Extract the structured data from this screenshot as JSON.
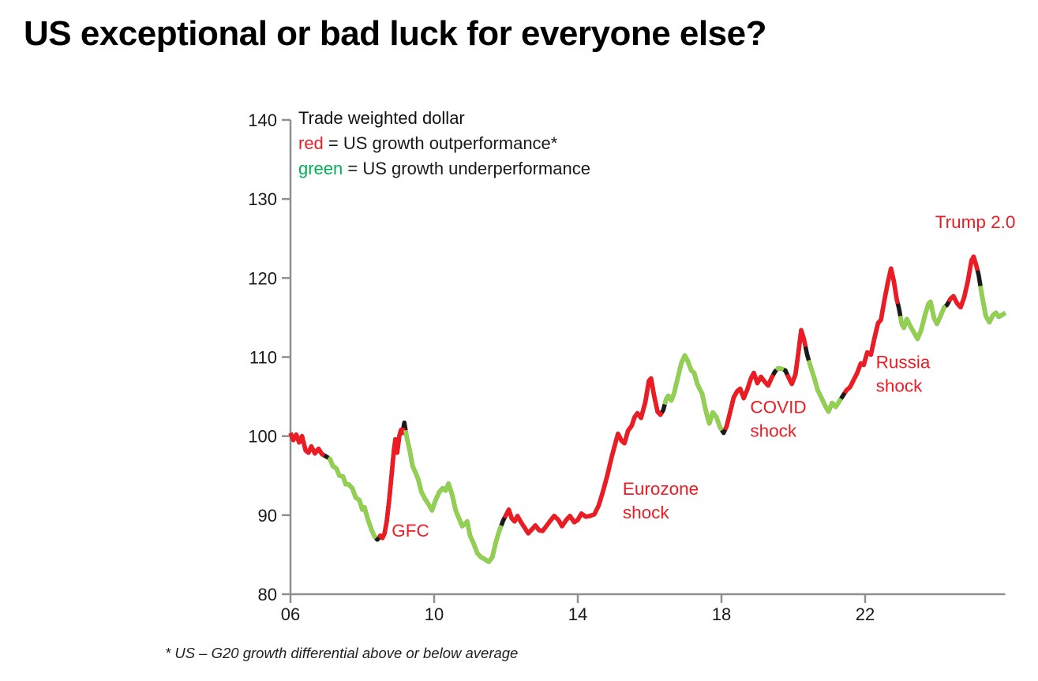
{
  "title": "US exceptional or bad luck for everyone else?",
  "footnote": "* US – G20 growth differential above or below average",
  "chart_data": {
    "type": "line",
    "title": "Trade weighted dollar",
    "xlabel": "",
    "ylabel": "",
    "xlim": [
      2006,
      2026
    ],
    "ylim": [
      80,
      140
    ],
    "grid": false,
    "legend_position": "top-left-inside",
    "axis_color": "#8f8f8f",
    "tick_label_color": "#1a1a1a",
    "joint_color": "#1a1a1a",
    "legend": {
      "heading": "Trade weighted dollar",
      "entries": [
        {
          "term": "red",
          "term_color": "#ed1c24",
          "definition": "= US growth outperformance*"
        },
        {
          "term": "green",
          "term_color": "#00b052",
          "definition": "= US growth underperformance"
        }
      ]
    },
    "y_ticks": [
      {
        "value": 80,
        "label": "80"
      },
      {
        "value": 90,
        "label": "90"
      },
      {
        "value": 100,
        "label": "100"
      },
      {
        "value": 110,
        "label": "110"
      },
      {
        "value": 120,
        "label": "120"
      },
      {
        "value": 130,
        "label": "130"
      },
      {
        "value": 140,
        "label": "140"
      }
    ],
    "x_ticks": [
      {
        "value": 2006,
        "label": "06"
      },
      {
        "value": 2010,
        "label": "10"
      },
      {
        "value": 2014,
        "label": "14"
      },
      {
        "value": 2018,
        "label": "18"
      },
      {
        "value": 2022,
        "label": "22"
      }
    ],
    "segments": [
      {
        "regime": "US growth outperformance",
        "color": "#ed1c24",
        "points": [
          [
            2006.0,
            100.4
          ],
          [
            2006.08,
            99.5
          ],
          [
            2006.16,
            100.2
          ],
          [
            2006.24,
            99.2
          ],
          [
            2006.32,
            100.0
          ],
          [
            2006.42,
            98.2
          ],
          [
            2006.5,
            97.9
          ],
          [
            2006.58,
            98.7
          ],
          [
            2006.68,
            97.8
          ],
          [
            2006.78,
            98.4
          ],
          [
            2006.88,
            97.7
          ],
          [
            2007.0,
            97.4
          ]
        ]
      },
      {
        "regime": "US growth underperformance",
        "color": "#92d050",
        "points": [
          [
            2007.0,
            97.4
          ],
          [
            2007.1,
            97.1
          ],
          [
            2007.18,
            96.2
          ],
          [
            2007.28,
            95.9
          ],
          [
            2007.36,
            95.0
          ],
          [
            2007.46,
            94.9
          ],
          [
            2007.54,
            93.9
          ],
          [
            2007.62,
            93.9
          ],
          [
            2007.72,
            93.4
          ],
          [
            2007.82,
            92.2
          ],
          [
            2007.92,
            91.9
          ],
          [
            2008.0,
            90.7
          ],
          [
            2008.06,
            91.0
          ],
          [
            2008.16,
            89.4
          ],
          [
            2008.26,
            88.1
          ],
          [
            2008.34,
            87.3
          ],
          [
            2008.42,
            86.9
          ]
        ]
      },
      {
        "regime": "US growth outperformance",
        "color": "#ed1c24",
        "points": [
          [
            2008.42,
            86.9
          ],
          [
            2008.5,
            87.4
          ],
          [
            2008.56,
            87.1
          ],
          [
            2008.62,
            87.7
          ],
          [
            2008.68,
            89.2
          ],
          [
            2008.75,
            92.0
          ],
          [
            2008.82,
            95.3
          ],
          [
            2008.88,
            98.2
          ],
          [
            2008.92,
            99.6
          ],
          [
            2008.97,
            97.9
          ],
          [
            2009.03,
            100.0
          ],
          [
            2009.08,
            100.8
          ],
          [
            2009.12,
            100.4
          ],
          [
            2009.17,
            101.7
          ]
        ]
      },
      {
        "regime": "US growth underperformance",
        "color": "#92d050",
        "points": [
          [
            2009.17,
            101.7
          ],
          [
            2009.24,
            99.8
          ],
          [
            2009.32,
            98.2
          ],
          [
            2009.4,
            96.2
          ],
          [
            2009.48,
            95.4
          ],
          [
            2009.56,
            94.5
          ],
          [
            2009.64,
            93.0
          ],
          [
            2009.74,
            92.1
          ],
          [
            2009.84,
            91.4
          ],
          [
            2009.94,
            90.6
          ],
          [
            2010.04,
            91.9
          ],
          [
            2010.14,
            92.9
          ],
          [
            2010.24,
            93.4
          ],
          [
            2010.32,
            93.1
          ],
          [
            2010.4,
            94.0
          ],
          [
            2010.5,
            92.6
          ],
          [
            2010.6,
            90.6
          ],
          [
            2010.7,
            89.5
          ],
          [
            2010.78,
            88.6
          ],
          [
            2010.86,
            88.9
          ],
          [
            2010.92,
            89.2
          ],
          [
            2011.0,
            87.4
          ],
          [
            2011.1,
            86.4
          ],
          [
            2011.2,
            85.2
          ],
          [
            2011.3,
            84.7
          ],
          [
            2011.42,
            84.4
          ],
          [
            2011.52,
            84.1
          ],
          [
            2011.62,
            84.7
          ],
          [
            2011.72,
            86.6
          ],
          [
            2011.82,
            88.1
          ],
          [
            2011.92,
            89.3
          ]
        ]
      },
      {
        "regime": "US growth outperformance",
        "color": "#ed1c24",
        "points": [
          [
            2011.92,
            89.3
          ],
          [
            2012.0,
            90.0
          ],
          [
            2012.08,
            90.7
          ],
          [
            2012.16,
            89.6
          ],
          [
            2012.24,
            89.2
          ],
          [
            2012.32,
            89.9
          ],
          [
            2012.42,
            89.1
          ],
          [
            2012.52,
            88.4
          ],
          [
            2012.62,
            87.7
          ],
          [
            2012.72,
            88.2
          ],
          [
            2012.82,
            88.7
          ],
          [
            2012.92,
            88.1
          ],
          [
            2013.02,
            88.0
          ],
          [
            2013.12,
            88.6
          ],
          [
            2013.22,
            89.2
          ],
          [
            2013.34,
            89.9
          ],
          [
            2013.46,
            89.4
          ],
          [
            2013.56,
            88.6
          ],
          [
            2013.68,
            89.4
          ],
          [
            2013.78,
            89.9
          ],
          [
            2013.9,
            89.1
          ],
          [
            2014.0,
            89.4
          ],
          [
            2014.1,
            90.2
          ],
          [
            2014.22,
            89.8
          ],
          [
            2014.34,
            89.9
          ],
          [
            2014.46,
            90.1
          ],
          [
            2014.58,
            91.2
          ],
          [
            2014.7,
            93.0
          ],
          [
            2014.82,
            95.0
          ],
          [
            2014.94,
            97.3
          ],
          [
            2015.04,
            99.0
          ],
          [
            2015.12,
            100.3
          ],
          [
            2015.22,
            99.4
          ],
          [
            2015.3,
            99.1
          ],
          [
            2015.4,
            100.7
          ],
          [
            2015.5,
            101.3
          ],
          [
            2015.58,
            102.4
          ],
          [
            2015.66,
            102.9
          ],
          [
            2015.76,
            102.3
          ],
          [
            2015.88,
            104.3
          ],
          [
            2015.98,
            107.0
          ],
          [
            2016.04,
            107.3
          ],
          [
            2016.12,
            105.2
          ],
          [
            2016.22,
            103.1
          ],
          [
            2016.3,
            102.7
          ],
          [
            2016.38,
            103.3
          ]
        ]
      },
      {
        "regime": "US growth underperformance",
        "color": "#92d050",
        "points": [
          [
            2016.38,
            103.3
          ],
          [
            2016.46,
            104.7
          ],
          [
            2016.52,
            105.1
          ],
          [
            2016.6,
            104.5
          ],
          [
            2016.68,
            105.4
          ],
          [
            2016.78,
            107.3
          ],
          [
            2016.88,
            109.2
          ],
          [
            2016.98,
            110.2
          ],
          [
            2017.06,
            109.5
          ],
          [
            2017.16,
            108.3
          ],
          [
            2017.24,
            108.0
          ],
          [
            2017.32,
            106.7
          ],
          [
            2017.4,
            105.9
          ],
          [
            2017.46,
            105.4
          ],
          [
            2017.56,
            103.3
          ],
          [
            2017.66,
            101.6
          ],
          [
            2017.76,
            103.0
          ],
          [
            2017.86,
            102.4
          ],
          [
            2017.96,
            101.1
          ],
          [
            2018.06,
            100.4
          ]
        ]
      },
      {
        "regime": "US growth outperformance",
        "color": "#ed1c24",
        "points": [
          [
            2018.06,
            100.4
          ],
          [
            2018.14,
            101.2
          ],
          [
            2018.24,
            103.0
          ],
          [
            2018.34,
            104.9
          ],
          [
            2018.44,
            105.7
          ],
          [
            2018.52,
            106.0
          ],
          [
            2018.62,
            104.8
          ],
          [
            2018.72,
            105.9
          ],
          [
            2018.82,
            107.3
          ],
          [
            2018.9,
            108.0
          ],
          [
            2019.0,
            106.7
          ],
          [
            2019.1,
            107.5
          ],
          [
            2019.2,
            106.9
          ],
          [
            2019.3,
            106.4
          ],
          [
            2019.4,
            107.4
          ],
          [
            2019.48,
            108.1
          ]
        ]
      },
      {
        "regime": "US growth underperformance",
        "color": "#92d050",
        "points": [
          [
            2019.48,
            108.1
          ],
          [
            2019.58,
            108.6
          ],
          [
            2019.68,
            108.5
          ],
          [
            2019.78,
            108.3
          ]
        ]
      },
      {
        "regime": "US growth outperformance",
        "color": "#ed1c24",
        "points": [
          [
            2019.78,
            108.3
          ],
          [
            2019.88,
            107.3
          ],
          [
            2019.96,
            106.6
          ],
          [
            2020.06,
            107.8
          ],
          [
            2020.14,
            110.5
          ],
          [
            2020.22,
            113.4
          ],
          [
            2020.3,
            112.2
          ],
          [
            2020.38,
            110.4
          ]
        ]
      },
      {
        "regime": "US growth underperformance",
        "color": "#92d050",
        "points": [
          [
            2020.38,
            110.4
          ],
          [
            2020.48,
            108.8
          ],
          [
            2020.58,
            107.4
          ],
          [
            2020.68,
            105.8
          ],
          [
            2020.78,
            104.9
          ],
          [
            2020.88,
            103.9
          ],
          [
            2020.98,
            103.1
          ],
          [
            2021.08,
            104.2
          ],
          [
            2021.18,
            103.7
          ],
          [
            2021.28,
            104.4
          ],
          [
            2021.38,
            105.1
          ]
        ]
      },
      {
        "regime": "US growth outperformance",
        "color": "#ed1c24",
        "points": [
          [
            2021.38,
            105.1
          ],
          [
            2021.48,
            105.8
          ],
          [
            2021.58,
            106.2
          ],
          [
            2021.68,
            107.1
          ],
          [
            2021.78,
            108.0
          ],
          [
            2021.88,
            109.2
          ],
          [
            2021.96,
            109.0
          ],
          [
            2022.06,
            110.6
          ],
          [
            2022.16,
            110.3
          ],
          [
            2022.26,
            112.4
          ],
          [
            2022.36,
            114.3
          ],
          [
            2022.44,
            114.7
          ],
          [
            2022.54,
            117.3
          ],
          [
            2022.64,
            119.6
          ],
          [
            2022.72,
            121.2
          ],
          [
            2022.8,
            119.6
          ],
          [
            2022.88,
            117.3
          ],
          [
            2022.94,
            116.2
          ]
        ]
      },
      {
        "regime": "US growth underperformance",
        "color": "#92d050",
        "points": [
          [
            2022.94,
            116.2
          ],
          [
            2023.02,
            114.2
          ],
          [
            2023.08,
            113.7
          ],
          [
            2023.16,
            114.8
          ],
          [
            2023.26,
            113.9
          ],
          [
            2023.36,
            113.1
          ],
          [
            2023.46,
            112.3
          ],
          [
            2023.56,
            113.4
          ],
          [
            2023.66,
            115.2
          ],
          [
            2023.76,
            116.7
          ],
          [
            2023.82,
            117.0
          ],
          [
            2023.92,
            114.9
          ],
          [
            2024.0,
            114.2
          ],
          [
            2024.1,
            115.2
          ],
          [
            2024.2,
            116.3
          ],
          [
            2024.28,
            116.6
          ]
        ]
      },
      {
        "regime": "US growth outperformance",
        "color": "#ed1c24",
        "points": [
          [
            2024.28,
            116.6
          ],
          [
            2024.38,
            117.4
          ],
          [
            2024.46,
            117.7
          ],
          [
            2024.56,
            116.8
          ],
          [
            2024.66,
            116.3
          ],
          [
            2024.76,
            117.6
          ],
          [
            2024.86,
            119.6
          ],
          [
            2024.96,
            122.2
          ],
          [
            2025.02,
            122.7
          ],
          [
            2025.1,
            121.5
          ],
          [
            2025.16,
            120.4
          ]
        ]
      },
      {
        "regime": "US growth underperformance",
        "color": "#92d050",
        "points": [
          [
            2025.16,
            120.4
          ],
          [
            2025.26,
            117.6
          ],
          [
            2025.36,
            115.2
          ],
          [
            2025.46,
            114.4
          ],
          [
            2025.56,
            115.3
          ],
          [
            2025.64,
            115.6
          ],
          [
            2025.72,
            115.1
          ],
          [
            2025.8,
            115.3
          ],
          [
            2025.9,
            115.6
          ]
        ]
      }
    ],
    "annotations": [
      {
        "text": "GFC",
        "year": 2008.82,
        "value": 89.3,
        "color": "#ed1c24"
      },
      {
        "text": "Eurozone\nshock",
        "year": 2015.25,
        "value": 94.6,
        "color": "#ed1c24"
      },
      {
        "text": "COVID\nshock",
        "year": 2018.8,
        "value": 104.9,
        "color": "#ed1c24"
      },
      {
        "text": "Russia\nshock",
        "year": 2022.3,
        "value": 110.6,
        "color": "#ed1c24"
      },
      {
        "text": "Trump 2.0",
        "year": 2023.95,
        "value": 128.3,
        "color": "#ed1c24"
      }
    ]
  }
}
